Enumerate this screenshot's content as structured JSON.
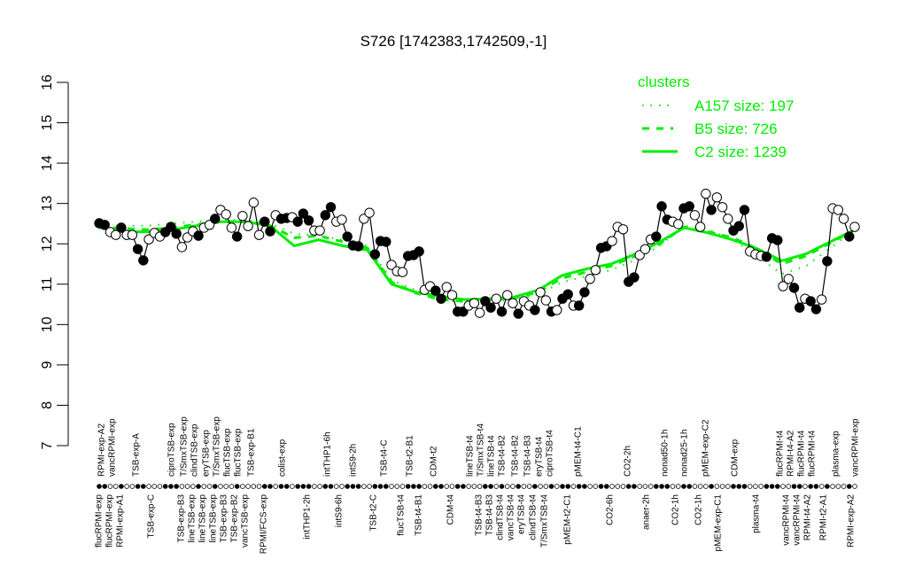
{
  "chart_data": {
    "type": "line",
    "title": "S726 [1742383,1742509,-1]",
    "xlabel": "",
    "ylabel": "",
    "ylim": [
      7,
      16
    ],
    "yticks": [
      7,
      8,
      9,
      10,
      11,
      12,
      13,
      14,
      15,
      16
    ],
    "grid": false,
    "legend": {
      "title": "clusters",
      "placement": "top-right",
      "entries": [
        {
          "label": "A157 size: 197",
          "style": "dotted",
          "color": "#00ee00"
        },
        {
          "label": "B5 size: 726",
          "style": "dashed",
          "color": "#00ee00"
        },
        {
          "label": "C2 size: 1239",
          "style": "solid",
          "color": "#00ee00"
        }
      ]
    },
    "x_labels": [
      {
        "text": "flucRPMI-exp",
        "tier": "bottom"
      },
      {
        "text": "RPMI-exp-A2",
        "tier": "top"
      },
      {
        "text": "flucRPMI-exp",
        "tier": "bottom"
      },
      {
        "text": "vancRPMI-exp",
        "tier": "top"
      },
      {
        "text": "RPMI-exp-A1",
        "tier": "bottom"
      },
      {
        "text": "TSB-exp-A",
        "tier": "top"
      },
      {
        "text": "TSB-exp-C",
        "tier": "bottom"
      },
      {
        "text": "ciproTSB-exp",
        "tier": "top"
      },
      {
        "text": "TSB-exp-B3",
        "tier": "bottom"
      },
      {
        "text": "T/SmxTSB-exp",
        "tier": "top"
      },
      {
        "text": "lineTSB-exp",
        "tier": "bottom"
      },
      {
        "text": "clindTSB-exp",
        "tier": "top"
      },
      {
        "text": "lineTSB-exp",
        "tier": "bottom"
      },
      {
        "text": "eryTSB-exp",
        "tier": "top"
      },
      {
        "text": "lineTSB-exp",
        "tier": "bottom"
      },
      {
        "text": "T/SmxTSB-exp",
        "tier": "top"
      },
      {
        "text": "TSB-exp-B3",
        "tier": "bottom"
      },
      {
        "text": "flucTSB-exp",
        "tier": "top"
      },
      {
        "text": "TSB-exp-B2",
        "tier": "bottom"
      },
      {
        "text": "flucTSB-exp",
        "tier": "top"
      },
      {
        "text": "vancTSB-exp",
        "tier": "bottom"
      },
      {
        "text": "TSB-exp-B1",
        "tier": "top"
      },
      {
        "text": "RPMI/FCS-exp",
        "tier": "bottom"
      },
      {
        "text": "colist-exp",
        "tier": "top"
      },
      {
        "text": "intTHP1-2h",
        "tier": "bottom"
      },
      {
        "text": "intTHP1-6h",
        "tier": "top"
      },
      {
        "text": "intS9-6h",
        "tier": "bottom"
      },
      {
        "text": "intS9-2h",
        "tier": "top"
      },
      {
        "text": "TSB-t2-C",
        "tier": "bottom"
      },
      {
        "text": "TSB-t4-C",
        "tier": "top"
      },
      {
        "text": "flucTSB-t4",
        "tier": "bottom"
      },
      {
        "text": "TSB-t2-B1",
        "tier": "top"
      },
      {
        "text": "TSB-t4-B1",
        "tier": "bottom"
      },
      {
        "text": "CDM-t2",
        "tier": "top"
      },
      {
        "text": "CDM-t4",
        "tier": "bottom"
      },
      {
        "text": "lineTSB-t4",
        "tier": "top"
      },
      {
        "text": "TSB-t4-B3",
        "tier": "bottom"
      },
      {
        "text": "T/SmxTSB-t4",
        "tier": "top"
      },
      {
        "text": "TSB-t4-B3",
        "tier": "bottom"
      },
      {
        "text": "lineTSB-t4",
        "tier": "top"
      },
      {
        "text": "clindTSB-t4",
        "tier": "bottom"
      },
      {
        "text": "TSB-t4-B2",
        "tier": "top"
      },
      {
        "text": "vancTSB-t4",
        "tier": "bottom"
      },
      {
        "text": "TSB-t4-B2",
        "tier": "top"
      },
      {
        "text": "eryTSB-t4",
        "tier": "bottom"
      },
      {
        "text": "TSB-t4-B3",
        "tier": "top"
      },
      {
        "text": "clindTSB-t4",
        "tier": "bottom"
      },
      {
        "text": "eryTSB-t4",
        "tier": "top"
      },
      {
        "text": "T/SmxTSB-t4",
        "tier": "bottom"
      },
      {
        "text": "ciproTSB-t4",
        "tier": "top"
      },
      {
        "text": "pMEM-t2-C1",
        "tier": "bottom"
      },
      {
        "text": "pMEM-t4-C1",
        "tier": "top"
      },
      {
        "text": "CO2-6h",
        "tier": "bottom"
      },
      {
        "text": "CO2-2h",
        "tier": "top"
      },
      {
        "text": "anaer-2h",
        "tier": "bottom"
      },
      {
        "text": "nonad50-1h",
        "tier": "top"
      },
      {
        "text": "CO2-1h",
        "tier": "bottom"
      },
      {
        "text": "nonad25-1h",
        "tier": "top"
      },
      {
        "text": "CO2-1h",
        "tier": "bottom"
      },
      {
        "text": "pMEM-exp-C2",
        "tier": "top"
      },
      {
        "text": "pMEM-exp-C1",
        "tier": "bottom"
      },
      {
        "text": "CDM-exp",
        "tier": "top"
      },
      {
        "text": "plasma-t4",
        "tier": "bottom"
      },
      {
        "text": "flucRPMI-t4",
        "tier": "top"
      },
      {
        "text": "vancRPMI-t4",
        "tier": "bottom"
      },
      {
        "text": "RPMI-t4-A2",
        "tier": "top"
      },
      {
        "text": "vancRPMI-t4",
        "tier": "bottom"
      },
      {
        "text": "flucRPMI-t4",
        "tier": "top"
      },
      {
        "text": "RPMI-t4-A2",
        "tier": "bottom"
      },
      {
        "text": "flucRPMI-t4",
        "tier": "top"
      },
      {
        "text": "RPMI-t2-A1",
        "tier": "bottom"
      },
      {
        "text": "plasma-exp",
        "tier": "top"
      },
      {
        "text": "RPMI-exp-A2",
        "tier": "bottom"
      },
      {
        "text": "vancRPMI-exp",
        "tier": "top"
      }
    ],
    "points": [
      [
        12.51,
        1
      ],
      [
        12.47,
        1
      ],
      [
        12.29,
        0
      ],
      [
        12.22,
        0
      ],
      [
        12.4,
        1
      ],
      [
        12.22,
        0
      ],
      [
        12.22,
        0
      ],
      [
        11.87,
        1
      ],
      [
        11.59,
        1
      ],
      [
        12.11,
        0
      ],
      [
        12.27,
        0
      ],
      [
        12.18,
        0
      ],
      [
        12.29,
        1
      ],
      [
        12.42,
        1
      ],
      [
        12.25,
        1
      ],
      [
        11.92,
        0
      ],
      [
        12.16,
        0
      ],
      [
        12.31,
        0
      ],
      [
        12.2,
        1
      ],
      [
        12.4,
        0
      ],
      [
        12.47,
        0
      ],
      [
        12.62,
        1
      ],
      [
        12.84,
        0
      ],
      [
        12.73,
        0
      ],
      [
        12.4,
        0
      ],
      [
        12.18,
        1
      ],
      [
        12.69,
        0
      ],
      [
        12.44,
        0
      ],
      [
        13.02,
        0
      ],
      [
        12.22,
        0
      ],
      [
        12.55,
        1
      ],
      [
        12.31,
        1
      ],
      [
        12.71,
        0
      ],
      [
        12.62,
        1
      ],
      [
        12.64,
        1
      ],
      [
        12.66,
        0
      ],
      [
        12.55,
        1
      ],
      [
        12.75,
        1
      ],
      [
        12.58,
        1
      ],
      [
        12.33,
        0
      ],
      [
        12.33,
        0
      ],
      [
        12.71,
        1
      ],
      [
        12.91,
        1
      ],
      [
        12.55,
        0
      ],
      [
        12.6,
        0
      ],
      [
        12.18,
        1
      ],
      [
        11.96,
        1
      ],
      [
        11.94,
        1
      ],
      [
        12.62,
        0
      ],
      [
        12.77,
        0
      ],
      [
        11.74,
        1
      ],
      [
        12.07,
        1
      ],
      [
        12.05,
        1
      ],
      [
        11.48,
        0
      ],
      [
        11.32,
        0
      ],
      [
        11.3,
        0
      ],
      [
        11.7,
        1
      ],
      [
        11.72,
        1
      ],
      [
        11.81,
        1
      ],
      [
        10.86,
        0
      ],
      [
        10.95,
        0
      ],
      [
        10.84,
        1
      ],
      [
        10.64,
        1
      ],
      [
        10.93,
        0
      ],
      [
        10.73,
        0
      ],
      [
        10.32,
        1
      ],
      [
        10.32,
        1
      ],
      [
        10.47,
        0
      ],
      [
        10.53,
        0
      ],
      [
        10.29,
        0
      ],
      [
        10.58,
        1
      ],
      [
        10.42,
        1
      ],
      [
        10.64,
        0
      ],
      [
        10.32,
        1
      ],
      [
        10.73,
        0
      ],
      [
        10.53,
        0
      ],
      [
        10.27,
        1
      ],
      [
        10.58,
        0
      ],
      [
        10.47,
        0
      ],
      [
        10.36,
        1
      ],
      [
        10.8,
        0
      ],
      [
        10.6,
        0
      ],
      [
        10.32,
        1
      ],
      [
        10.36,
        0
      ],
      [
        10.64,
        1
      ],
      [
        10.75,
        1
      ],
      [
        10.47,
        0
      ],
      [
        10.47,
        1
      ],
      [
        10.8,
        1
      ],
      [
        11.13,
        0
      ],
      [
        11.35,
        0
      ],
      [
        11.9,
        1
      ],
      [
        11.94,
        1
      ],
      [
        12.07,
        0
      ],
      [
        12.42,
        0
      ],
      [
        12.36,
        0
      ],
      [
        11.06,
        1
      ],
      [
        11.17,
        1
      ],
      [
        11.72,
        0
      ],
      [
        11.87,
        0
      ],
      [
        12.11,
        0
      ],
      [
        12.18,
        1
      ],
      [
        12.93,
        1
      ],
      [
        12.6,
        1
      ],
      [
        12.55,
        0
      ],
      [
        12.49,
        0
      ],
      [
        12.88,
        1
      ],
      [
        12.93,
        1
      ],
      [
        12.71,
        0
      ],
      [
        12.42,
        0
      ],
      [
        13.24,
        0
      ],
      [
        12.84,
        1
      ],
      [
        13.15,
        0
      ],
      [
        12.91,
        0
      ],
      [
        12.62,
        0
      ],
      [
        12.33,
        1
      ],
      [
        12.44,
        1
      ],
      [
        12.84,
        1
      ],
      [
        11.81,
        0
      ],
      [
        11.74,
        0
      ],
      [
        11.7,
        0
      ],
      [
        11.68,
        1
      ],
      [
        12.14,
        1
      ],
      [
        12.09,
        1
      ],
      [
        10.95,
        0
      ],
      [
        11.13,
        0
      ],
      [
        10.91,
        1
      ],
      [
        10.42,
        1
      ],
      [
        10.64,
        0
      ],
      [
        10.58,
        1
      ],
      [
        10.38,
        1
      ],
      [
        10.62,
        0
      ],
      [
        11.57,
        1
      ],
      [
        12.88,
        0
      ],
      [
        12.84,
        0
      ],
      [
        12.62,
        0
      ],
      [
        12.18,
        1
      ],
      [
        12.42,
        0
      ]
    ],
    "series": [
      {
        "name": "A157 size: 197",
        "style": "dotted",
        "values": [
          12.45,
          12.45,
          12.45,
          12.5,
          12.55,
          12.6,
          12.6,
          12.5,
          12.25,
          12.2,
          12.1,
          11.95,
          11.1,
          10.85,
          10.6,
          10.55,
          10.6,
          10.6,
          10.75,
          11.05,
          11.2,
          11.35,
          11.6,
          11.95,
          12.45,
          12.35,
          12.1,
          11.7,
          11.25,
          11.45,
          11.9,
          12.35
        ]
      },
      {
        "name": "B5 size: 726",
        "style": "dashed",
        "values": [
          12.42,
          12.38,
          12.35,
          12.4,
          12.48,
          12.55,
          12.55,
          12.45,
          12.15,
          12.2,
          12.05,
          11.9,
          11.05,
          10.78,
          10.62,
          10.58,
          10.62,
          10.65,
          10.8,
          11.15,
          11.3,
          11.45,
          11.7,
          12.0,
          12.42,
          12.3,
          12.15,
          11.88,
          11.5,
          11.7,
          12.02,
          12.35
        ]
      },
      {
        "name": "C2 size: 1239",
        "style": "solid",
        "values": [
          12.4,
          12.3,
          12.3,
          12.35,
          12.45,
          12.55,
          12.55,
          12.45,
          11.95,
          12.1,
          11.95,
          11.85,
          11.0,
          10.8,
          10.7,
          10.62,
          10.64,
          10.68,
          10.85,
          11.22,
          11.38,
          11.5,
          11.75,
          12.05,
          12.4,
          12.27,
          12.1,
          11.88,
          11.58,
          11.75,
          12.05,
          12.35
        ]
      }
    ]
  }
}
